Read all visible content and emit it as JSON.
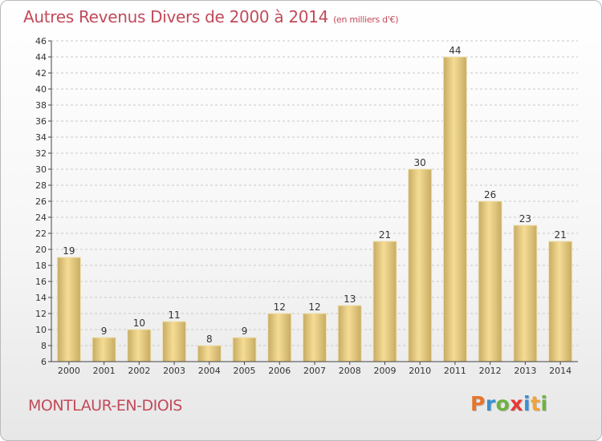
{
  "header": {
    "title": "Autres Revenus Divers de 2000 à 2014",
    "unit": "(en milliers d'€)"
  },
  "footer": {
    "commune": "MONTLAUR-EN-DIOIS",
    "logo": {
      "letters": [
        "P",
        "r",
        "o",
        "x",
        "i",
        "t",
        "i"
      ],
      "colors": [
        "#e8742a",
        "#3a8fcf",
        "#6db33f",
        "#e53935",
        "#3a8fcf",
        "#f2a33a",
        "#6db33f"
      ]
    }
  },
  "chart_data": {
    "type": "bar",
    "categories": [
      "2000",
      "2001",
      "2002",
      "2003",
      "2004",
      "2005",
      "2006",
      "2007",
      "2008",
      "2009",
      "2010",
      "2011",
      "2012",
      "2013",
      "2014"
    ],
    "values": [
      19,
      9,
      10,
      11,
      8,
      9,
      12,
      12,
      13,
      21,
      30,
      44,
      26,
      23,
      21
    ],
    "data_labels": [
      "19",
      "9",
      "10",
      "11",
      "8",
      "9",
      "12",
      "12",
      "13",
      "21",
      "30",
      "44",
      "26",
      "23",
      "21"
    ],
    "title": "Autres Revenus Divers de 2000 à 2014",
    "ylim": [
      6,
      46
    ],
    "yticks": [
      6,
      8,
      10,
      12,
      14,
      16,
      18,
      20,
      22,
      24,
      26,
      28,
      30,
      32,
      34,
      36,
      38,
      40,
      42,
      44,
      46
    ],
    "grid": true,
    "colors": {
      "bar_light": "#f5dc95",
      "bar_dark": "#c7ab62",
      "grid": "#c8c8c8",
      "axis": "#444444",
      "title": "#c24a5a"
    }
  }
}
